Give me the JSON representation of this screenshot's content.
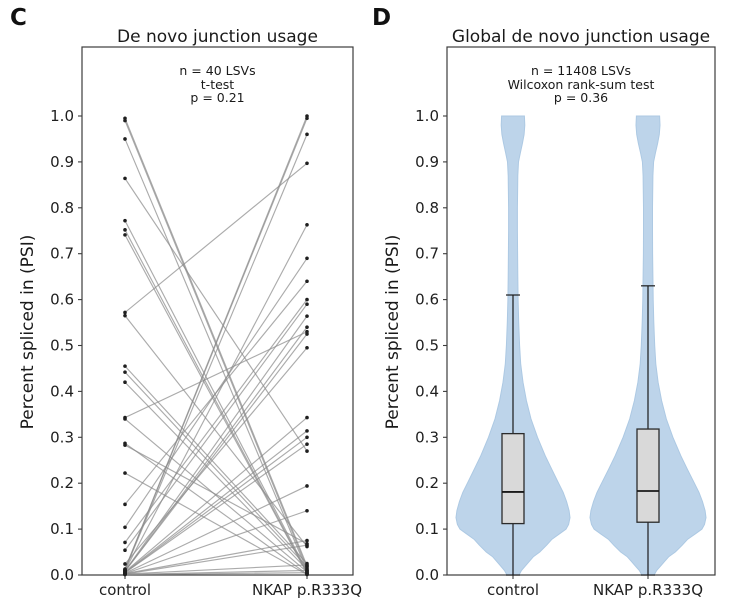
{
  "figure": {
    "panels": {
      "c": {
        "label": "C",
        "title": "De novo junction usage",
        "annotation": [
          "n = 40 LSVs",
          "t-test",
          "p = 0.21"
        ],
        "ylabel": "Percent spliced in (PSI)"
      },
      "d": {
        "label": "D",
        "title": "Global de novo junction usage",
        "annotation": [
          "n = 11408 LSVs",
          "Wilcoxon rank-sum test",
          "p = 0.36"
        ],
        "ylabel": "Percent spliced in (PSI)"
      }
    },
    "colors": {
      "pair_line": "#8a8a8a",
      "dot": "#1f1f1f",
      "violin_fill": "#bdd4ea",
      "violin_edge": "#adc9e3",
      "box_fill": "#d9d9d9",
      "box_edge": "#2b2b2b",
      "median": "#1a1a1a",
      "whisker": "#1a1a1a",
      "axis": "#3c3c3c",
      "text": "#1f1f1f"
    }
  },
  "chart_data": [
    {
      "type": "line",
      "subtype": "paired-slope-plot",
      "title": "De novo junction usage",
      "categories": [
        "control",
        "NKAP p.R333Q"
      ],
      "ylabel": "Percent spliced in (PSI)",
      "ylim": [
        0.0,
        1.0
      ],
      "yticks": [
        1.0,
        0.9,
        0.8,
        0.7,
        0.6,
        0.5,
        0.4,
        0.3,
        0.2,
        0.1,
        0.0
      ],
      "annotation": [
        "n = 40 LSVs",
        "t-test",
        "p = 0.21"
      ],
      "n": 40,
      "test": "t-test",
      "p_value": 0.21,
      "pairs": [
        [
          0.995,
          0.02
        ],
        [
          0.99,
          0.015
        ],
        [
          0.95,
          0.01
        ],
        [
          0.864,
          0.27
        ],
        [
          0.772,
          0.008
        ],
        [
          0.752,
          0.005
        ],
        [
          0.741,
          0.003
        ],
        [
          0.572,
          0.897
        ],
        [
          0.565,
          0.062
        ],
        [
          0.455,
          0.025
        ],
        [
          0.442,
          0.018
        ],
        [
          0.42,
          0.012
        ],
        [
          0.343,
          0.53
        ],
        [
          0.34,
          0.007
        ],
        [
          0.287,
          0.002
        ],
        [
          0.283,
          0.068
        ],
        [
          0.222,
          0.001
        ],
        [
          0.154,
          0.64
        ],
        [
          0.104,
          0.69
        ],
        [
          0.071,
          0.6
        ],
        [
          0.054,
          0.59
        ],
        [
          0.024,
          0.495
        ],
        [
          0.013,
          1.0
        ],
        [
          0.012,
          0.995
        ],
        [
          0.011,
          0.96
        ],
        [
          0.01,
          0.763
        ],
        [
          0.009,
          0.564
        ],
        [
          0.008,
          0.54
        ],
        [
          0.008,
          0.525
        ],
        [
          0.007,
          0.343
        ],
        [
          0.006,
          0.314
        ],
        [
          0.005,
          0.3
        ],
        [
          0.005,
          0.285
        ],
        [
          0.004,
          0.194
        ],
        [
          0.003,
          0.14
        ],
        [
          0.003,
          0.075
        ],
        [
          0.002,
          0.065
        ],
        [
          0.002,
          0.022
        ],
        [
          0.001,
          0.01
        ],
        [
          0.001,
          0.005
        ]
      ]
    },
    {
      "type": "violin",
      "title": "Global de novo junction usage",
      "categories": [
        "control",
        "NKAP p.R333Q"
      ],
      "ylabel": "Percent spliced in (PSI)",
      "ylim": [
        0.0,
        1.0
      ],
      "yticks": [
        1.0,
        0.9,
        0.8,
        0.7,
        0.6,
        0.5,
        0.4,
        0.3,
        0.2,
        0.1,
        0.0
      ],
      "annotation": [
        "n = 11408 LSVs",
        "Wilcoxon rank-sum test",
        "p = 0.36"
      ],
      "n": 11408,
      "test": "Wilcoxon rank-sum test",
      "p_value": 0.36,
      "series": [
        {
          "name": "control",
          "median": 0.181,
          "q1": 0.112,
          "q3": 0.308,
          "whisker_low": 0.0,
          "whisker_high": 0.61
        },
        {
          "name": "NKAP p.R333Q",
          "median": 0.183,
          "q1": 0.115,
          "q3": 0.318,
          "whisker_low": 0.0,
          "whisker_high": 0.63
        }
      ],
      "kde_halfwidth_profile": [
        [
          0.0,
          0.105
        ],
        [
          0.01,
          0.15
        ],
        [
          0.02,
          0.22
        ],
        [
          0.03,
          0.29
        ],
        [
          0.04,
          0.36
        ],
        [
          0.05,
          0.47
        ],
        [
          0.065,
          0.59
        ],
        [
          0.078,
          0.685
        ],
        [
          0.09,
          0.82
        ],
        [
          0.1,
          0.93
        ],
        [
          0.11,
          0.975
        ],
        [
          0.125,
          1.0
        ],
        [
          0.14,
          0.985
        ],
        [
          0.16,
          0.94
        ],
        [
          0.18,
          0.88
        ],
        [
          0.2,
          0.8
        ],
        [
          0.23,
          0.68
        ],
        [
          0.26,
          0.565
        ],
        [
          0.3,
          0.43
        ],
        [
          0.34,
          0.315
        ],
        [
          0.38,
          0.235
        ],
        [
          0.42,
          0.175
        ],
        [
          0.46,
          0.135
        ],
        [
          0.5,
          0.115
        ],
        [
          0.55,
          0.1
        ],
        [
          0.6,
          0.09
        ],
        [
          0.65,
          0.085
        ],
        [
          0.7,
          0.08
        ],
        [
          0.75,
          0.078
        ],
        [
          0.8,
          0.078
        ],
        [
          0.85,
          0.082
        ],
        [
          0.87,
          0.085
        ],
        [
          0.9,
          0.097
        ],
        [
          0.92,
          0.13
        ],
        [
          0.94,
          0.165
        ],
        [
          0.96,
          0.195
        ],
        [
          0.98,
          0.207
        ],
        [
          1.0,
          0.2
        ]
      ]
    }
  ]
}
